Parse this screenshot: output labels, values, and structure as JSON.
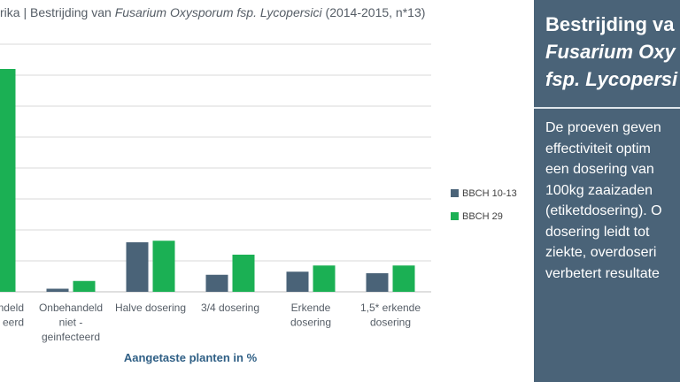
{
  "chart_data": {
    "type": "bar",
    "title_parts": [
      "rika | Bestrijding van ",
      "Fusarium Oxysporum fsp. Lycopersici",
      " (2014-2015, n*13)"
    ],
    "categories": [
      [
        "Onbehandeld",
        "geinfecteerd"
      ],
      [
        "Onbehandeld",
        "niet -",
        "geinfecteerd"
      ],
      [
        "Halve dosering"
      ],
      [
        "3/4 dosering"
      ],
      [
        "Erkende",
        "dosering"
      ],
      [
        "1,5* erkende",
        "dosering"
      ]
    ],
    "category_labels_visible": [
      [
        "ndeld",
        "eerd"
      ],
      [
        "Onbehandeld",
        "niet -",
        "geinfecteerd"
      ],
      [
        "Halve dosering"
      ],
      [
        "3/4 dosering"
      ],
      [
        "Erkende",
        "dosering"
      ],
      [
        "1,5* erkende",
        "dosering"
      ]
    ],
    "series": [
      {
        "name": "BBCH 10-13",
        "color": "#4a6378",
        "values": [
          null,
          1,
          16,
          5.5,
          6.5,
          6
        ]
      },
      {
        "name": "BBCH 29",
        "color": "#1bb054",
        "values": [
          72,
          3.5,
          16.5,
          12,
          8.5,
          8.5
        ]
      }
    ],
    "xlabel": "Aangetaste planten in %",
    "ylim": [
      0,
      80
    ],
    "grid": true,
    "legend_position": "right"
  },
  "panel": {
    "title_lines": [
      "Bestrijding va",
      "Fusarium Oxy",
      "fsp. Lycopersi"
    ],
    "body_lines": [
      "De proeven geven",
      "effectiviteit optim",
      "een dosering van",
      "100kg zaaizaden",
      "(etiketdosering). O",
      "dosering leidt tot",
      "ziekte, overdoseri",
      "verbetert resultate"
    ]
  }
}
